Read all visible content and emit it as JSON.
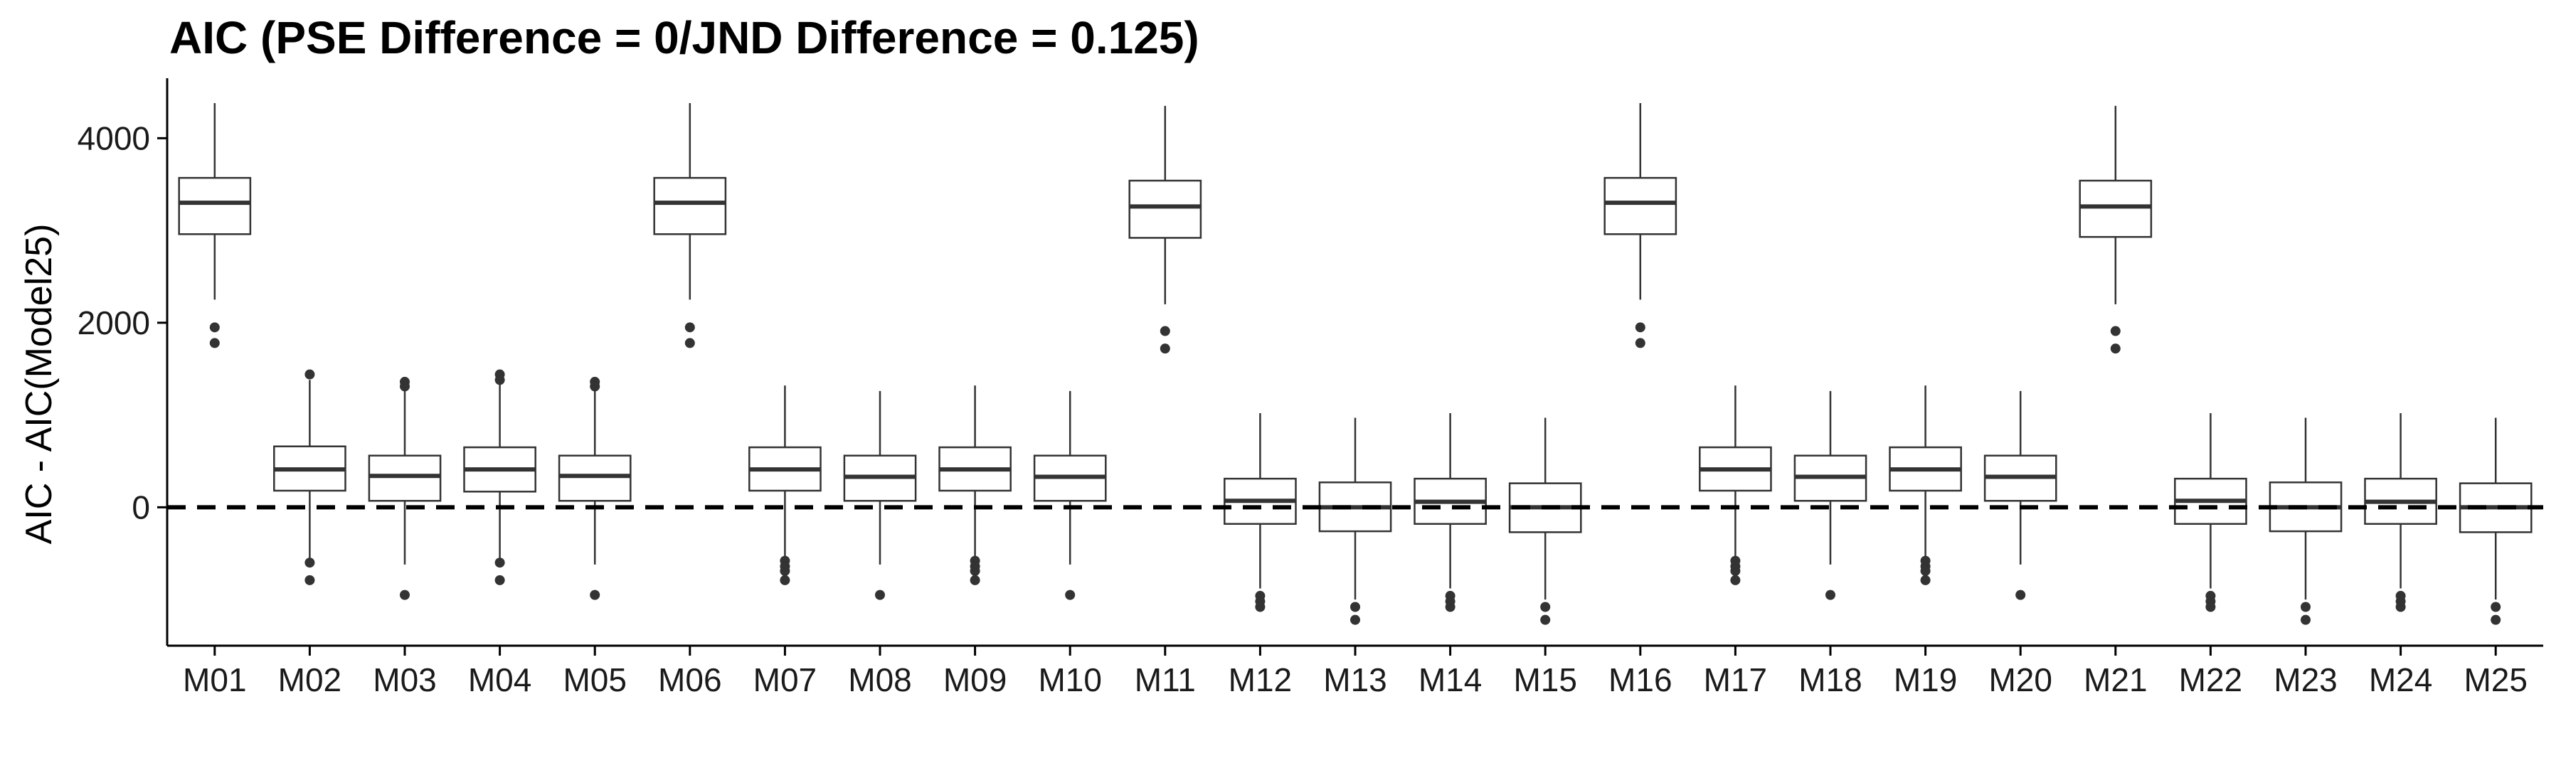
{
  "chart_data": {
    "type": "boxplot",
    "title": "AIC (PSE Difference = 0/JND Difference = 0.125)",
    "xlabel": "",
    "ylabel": "AIC - AIC(Model25)",
    "ylim": [
      -1500,
      4650
    ],
    "yticks": [
      0,
      2000,
      4000
    ],
    "reference_line": {
      "y": 0,
      "style": "dashed"
    },
    "grid": false,
    "legend": "none",
    "colors": {
      "box_fill": "#ffffff",
      "box_stroke": "#333333",
      "median": "#333333",
      "outlier": "#333333",
      "reference": "#000000"
    },
    "categories": [
      "M01",
      "M02",
      "M03",
      "M04",
      "M05",
      "M06",
      "M07",
      "M08",
      "M09",
      "M10",
      "M11",
      "M12",
      "M13",
      "M14",
      "M15",
      "M16",
      "M17",
      "M18",
      "M19",
      "M20",
      "M21",
      "M22",
      "M23",
      "M24",
      "M25"
    ],
    "boxes": [
      {
        "min": 2250,
        "q1": 2960,
        "median": 3300,
        "q3": 3570,
        "max": 4380,
        "outliers": [
          1950,
          1780
        ]
      },
      {
        "min": -550,
        "q1": 180,
        "median": 410,
        "q3": 660,
        "max": 1380,
        "outliers": [
          1440,
          -600,
          -790
        ]
      },
      {
        "min": -620,
        "q1": 70,
        "median": 340,
        "q3": 560,
        "max": 1300,
        "outliers": [
          1360,
          1310,
          -950
        ]
      },
      {
        "min": -550,
        "q1": 170,
        "median": 410,
        "q3": 650,
        "max": 1360,
        "outliers": [
          1440,
          1380,
          -600,
          -790
        ]
      },
      {
        "min": -620,
        "q1": 70,
        "median": 340,
        "q3": 560,
        "max": 1300,
        "outliers": [
          1360,
          1310,
          -950
        ]
      },
      {
        "min": 2250,
        "q1": 2960,
        "median": 3300,
        "q3": 3570,
        "max": 4380,
        "outliers": [
          1950,
          1780
        ]
      },
      {
        "min": -540,
        "q1": 180,
        "median": 410,
        "q3": 650,
        "max": 1320,
        "outliers": [
          -580,
          -640,
          -690,
          -790
        ]
      },
      {
        "min": -620,
        "q1": 70,
        "median": 330,
        "q3": 560,
        "max": 1260,
        "outliers": [
          -950
        ]
      },
      {
        "min": -540,
        "q1": 180,
        "median": 410,
        "q3": 650,
        "max": 1320,
        "outliers": [
          -580,
          -640,
          -690,
          -790
        ]
      },
      {
        "min": -620,
        "q1": 70,
        "median": 330,
        "q3": 560,
        "max": 1260,
        "outliers": [
          -950
        ]
      },
      {
        "min": 2200,
        "q1": 2920,
        "median": 3260,
        "q3": 3540,
        "max": 4350,
        "outliers": [
          1910,
          1720
        ]
      },
      {
        "min": -880,
        "q1": -180,
        "median": 70,
        "q3": 310,
        "max": 1020,
        "outliers": [
          -960,
          -1020,
          -1080
        ]
      },
      {
        "min": -1000,
        "q1": -260,
        "median": 0,
        "q3": 270,
        "max": 970,
        "outliers": [
          -1080,
          -1220
        ]
      },
      {
        "min": -880,
        "q1": -180,
        "median": 60,
        "q3": 310,
        "max": 1020,
        "outliers": [
          -960,
          -1020,
          -1080
        ]
      },
      {
        "min": -1000,
        "q1": -270,
        "median": 0,
        "q3": 260,
        "max": 970,
        "outliers": [
          -1080,
          -1220
        ]
      },
      {
        "min": 2250,
        "q1": 2960,
        "median": 3300,
        "q3": 3570,
        "max": 4380,
        "outliers": [
          1950,
          1780
        ]
      },
      {
        "min": -540,
        "q1": 180,
        "median": 410,
        "q3": 650,
        "max": 1320,
        "outliers": [
          -580,
          -640,
          -690,
          -790
        ]
      },
      {
        "min": -620,
        "q1": 70,
        "median": 330,
        "q3": 560,
        "max": 1260,
        "outliers": [
          -950
        ]
      },
      {
        "min": -540,
        "q1": 180,
        "median": 410,
        "q3": 650,
        "max": 1320,
        "outliers": [
          -580,
          -640,
          -690,
          -790
        ]
      },
      {
        "min": -620,
        "q1": 70,
        "median": 330,
        "q3": 560,
        "max": 1260,
        "outliers": [
          -950
        ]
      },
      {
        "min": 2200,
        "q1": 2930,
        "median": 3260,
        "q3": 3540,
        "max": 4350,
        "outliers": [
          1910,
          1720
        ]
      },
      {
        "min": -880,
        "q1": -180,
        "median": 70,
        "q3": 310,
        "max": 1020,
        "outliers": [
          -960,
          -1020,
          -1080
        ]
      },
      {
        "min": -1000,
        "q1": -260,
        "median": 0,
        "q3": 270,
        "max": 970,
        "outliers": [
          -1080,
          -1220
        ]
      },
      {
        "min": -880,
        "q1": -180,
        "median": 60,
        "q3": 310,
        "max": 1020,
        "outliers": [
          -960,
          -1020,
          -1080
        ]
      },
      {
        "min": -1000,
        "q1": -270,
        "median": 0,
        "q3": 260,
        "max": 970,
        "outliers": [
          -1080,
          -1220
        ]
      }
    ]
  }
}
